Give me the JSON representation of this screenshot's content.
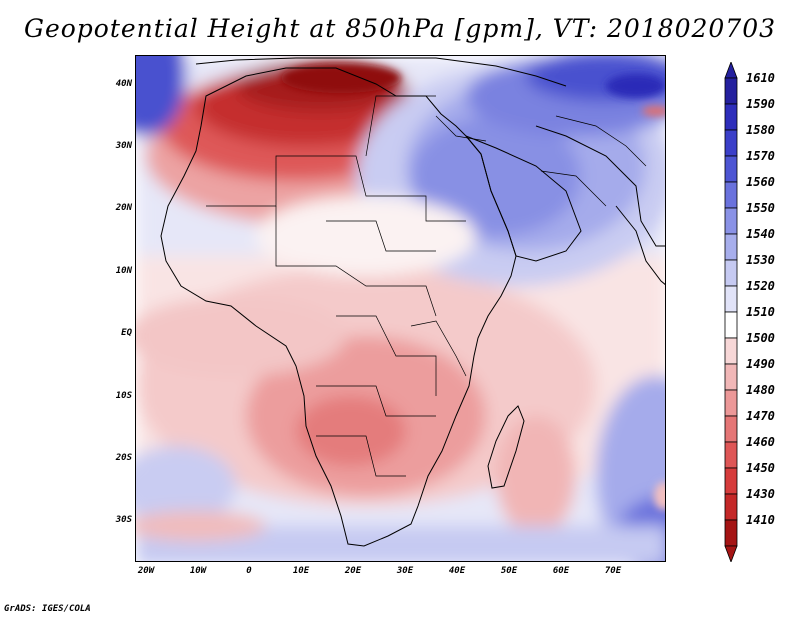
{
  "title": "Geopotential Height at 850hPa [gpm], VT: 2018020703",
  "credit": "GrADS: IGES/COLA",
  "axes": {
    "y_ticks": [
      "40N",
      "30N",
      "20N",
      "10N",
      "EQ",
      "10S",
      "20S",
      "30S"
    ],
    "x_ticks": [
      "20W",
      "10W",
      "0",
      "10E",
      "20E",
      "30E",
      "40E",
      "50E",
      "60E",
      "70E"
    ]
  },
  "colorbar": {
    "labels": [
      "1610",
      "1590",
      "1580",
      "1570",
      "1560",
      "1550",
      "1540",
      "1530",
      "1520",
      "1510",
      "1500",
      "1490",
      "1480",
      "1470",
      "1460",
      "1450",
      "1430",
      "1410"
    ],
    "colors": [
      "#24209e",
      "#2e2ebb",
      "#3b3fc9",
      "#4d55d3",
      "#6a72dd",
      "#8a92e6",
      "#a7aeec",
      "#c6caf2",
      "#e1e3f8",
      "#ffffff",
      "#f7d7d7",
      "#f1b7b7",
      "#ec9898",
      "#e57676",
      "#de5656",
      "#d63c3c",
      "#c42828",
      "#a51414"
    ]
  },
  "field": {
    "min_gpm": 1410,
    "max_gpm": 1610,
    "highs": "blue over Arabia, Iran and the south Indian Ocean margins",
    "lows": "dark red over North Africa and the Mediterranean"
  }
}
